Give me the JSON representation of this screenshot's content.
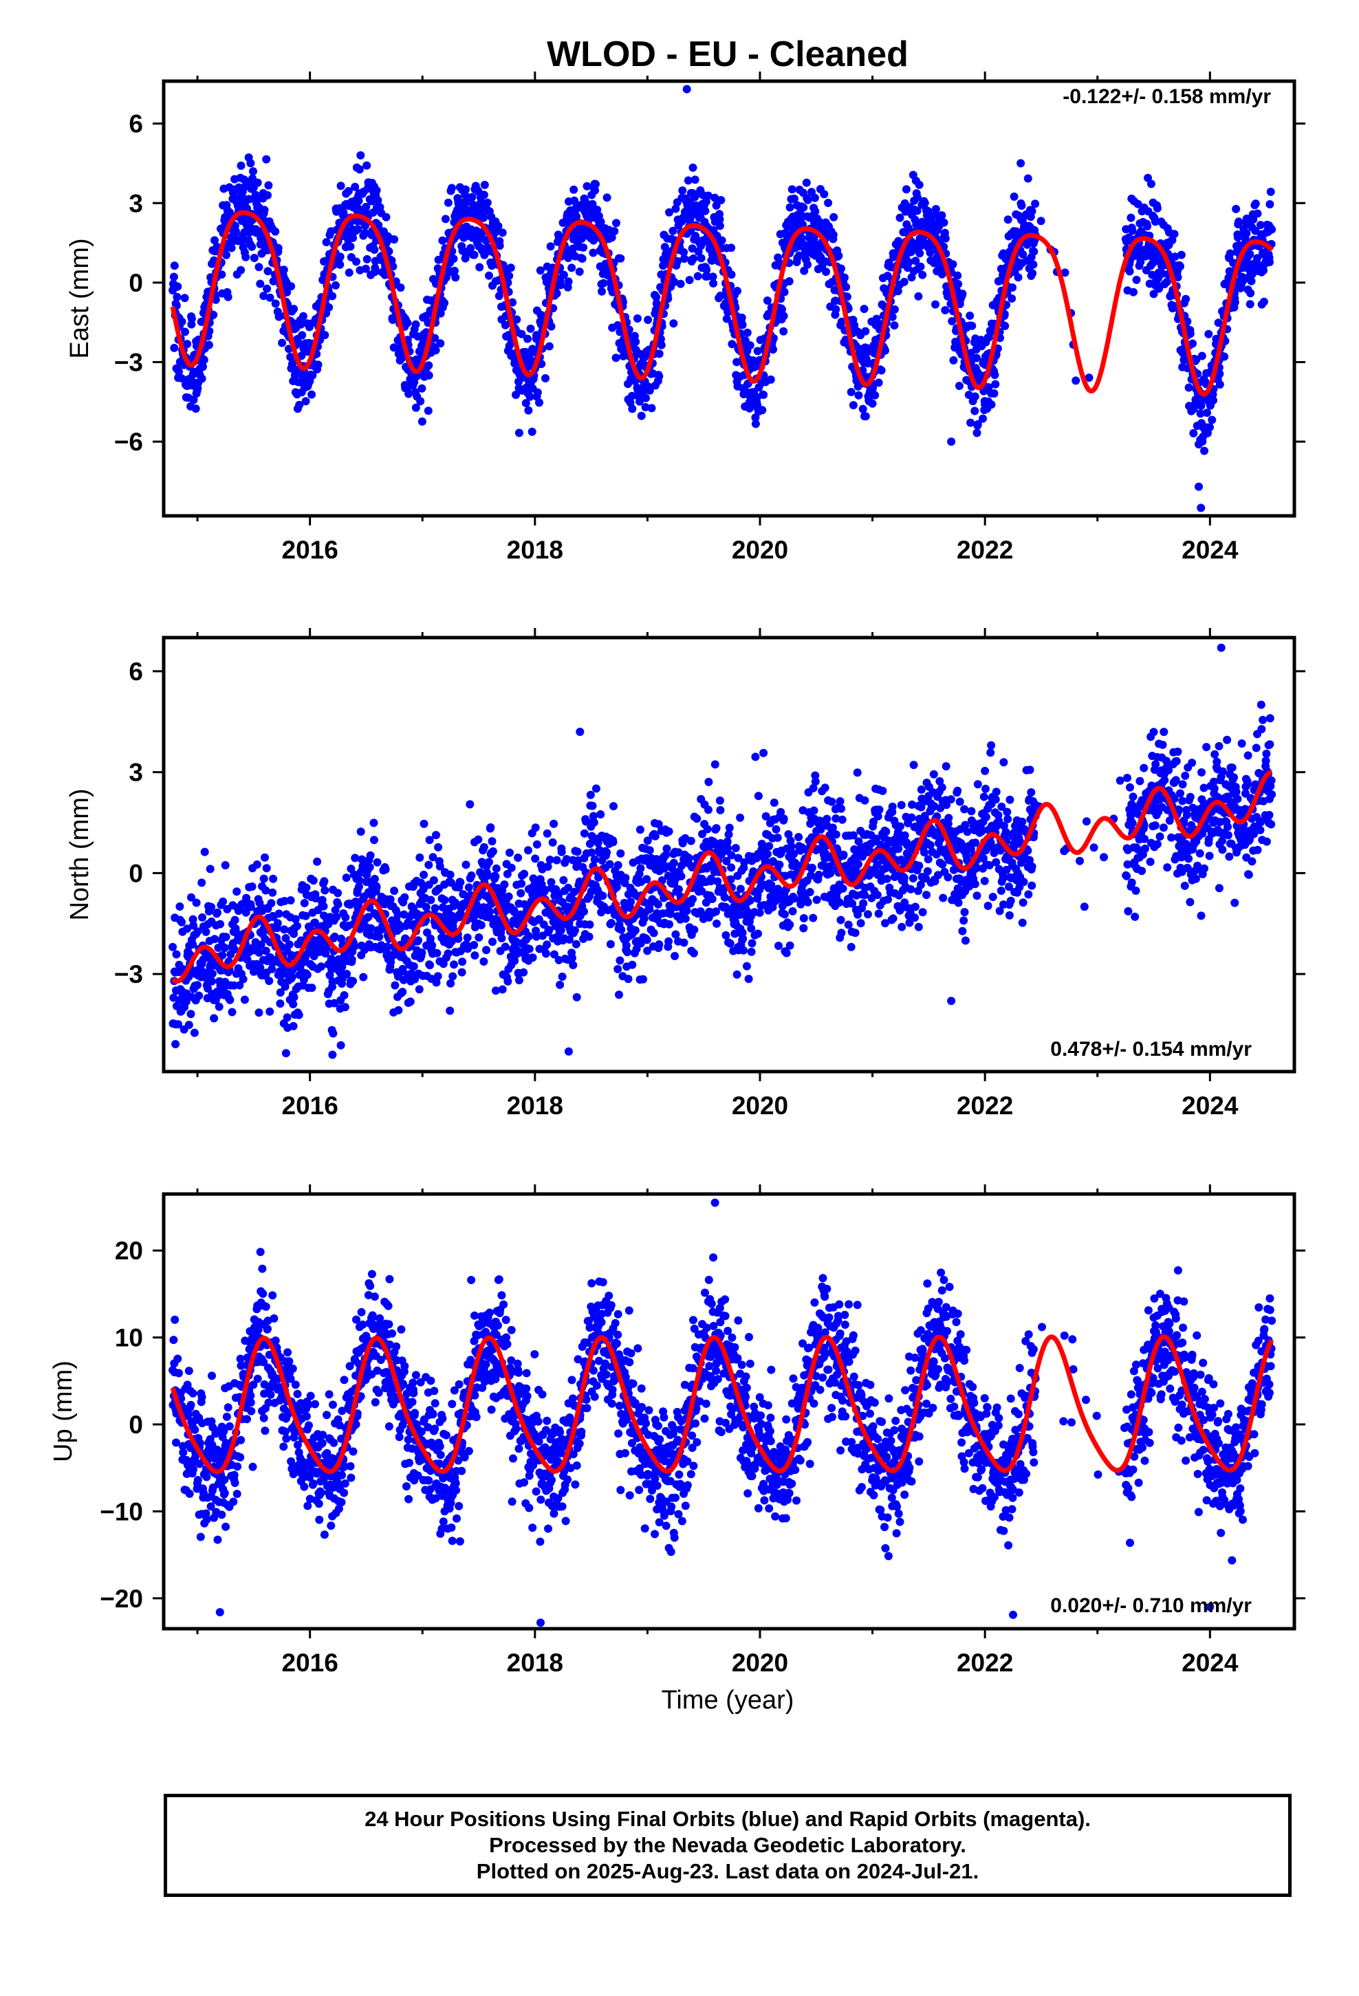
{
  "title": "WLOD  - EU - Cleaned",
  "xlabel": "Time (year)",
  "footer": {
    "line1": "24 Hour Positions Using Final Orbits (blue) and Rapid Orbits (magenta).",
    "line2": "Processed by the Nevada Geodetic Laboratory.",
    "line3": "Plotted on 2025-Aug-23. Last data on 2024-Jul-21."
  },
  "colors": {
    "data": "#0000ff",
    "model": "#ff0000",
    "axis": "#000000"
  },
  "chart_data": [
    {
      "type": "scatter",
      "panel": "east",
      "ylabel": "East (mm)",
      "rate_text": "-0.122+/- 0.158 mm/yr",
      "xlim": [
        2014.7,
        2024.75
      ],
      "ylim": [
        -8.8,
        7.6
      ],
      "xticks": [
        2016,
        2018,
        2020,
        2022,
        2024
      ],
      "yticks": [
        -6,
        -3,
        0,
        3,
        6
      ],
      "ytick_labels": [
        "−6",
        "−3",
        "0",
        "3",
        "6"
      ],
      "model": {
        "offset": -0.25,
        "trend": -0.122,
        "annual_amp": 2.9,
        "peak": 0.44,
        "semi_amp": 0.55,
        "semi_peak": 0.2
      },
      "scatter_sd": 0.9,
      "extremes": [
        {
          "x": 2019.35,
          "y": 7.3
        },
        {
          "x": 2023.9,
          "y": -7.7
        },
        {
          "x": 2023.92,
          "y": -8.5
        },
        {
          "x": 2023.9,
          "y": -6.1
        },
        {
          "x": 2021.7,
          "y": -6.0
        }
      ],
      "gaps": [
        [
          2022.45,
          2023.25
        ]
      ]
    },
    {
      "type": "scatter",
      "panel": "north",
      "ylabel": "North (mm)",
      "rate_text": "0.478+/- 0.154 mm/yr",
      "xlim": [
        2014.7,
        2024.75
      ],
      "ylim": [
        -5.9,
        7.0
      ],
      "xticks": [
        2016,
        2018,
        2020,
        2022,
        2024
      ],
      "yticks": [
        -3,
        0,
        3,
        6
      ],
      "ytick_labels": [
        "−3",
        "0",
        "3",
        "6"
      ],
      "model": {
        "offset": -0.2,
        "trend": 0.478,
        "annual_amp": 0.35,
        "peak": 0.5,
        "semi_amp": 0.55,
        "semi_peak": 0.05
      },
      "scatter_sd": 0.95,
      "extremes": [
        {
          "x": 2018.4,
          "y": 4.2
        },
        {
          "x": 2018.3,
          "y": -5.3
        },
        {
          "x": 2016.2,
          "y": -5.4
        },
        {
          "x": 2024.1,
          "y": 6.7
        },
        {
          "x": 2021.7,
          "y": -3.8
        }
      ],
      "gaps": [
        [
          2022.45,
          2023.25
        ]
      ]
    },
    {
      "type": "scatter",
      "panel": "up",
      "ylabel": "Up (mm)",
      "rate_text": "0.020+/- 0.710 mm/yr",
      "xlim": [
        2014.7,
        2024.75
      ],
      "ylim": [
        -23.5,
        26.5
      ],
      "xticks": [
        2016,
        2018,
        2020,
        2022,
        2024
      ],
      "yticks": [
        -20,
        -10,
        0,
        10,
        20
      ],
      "ytick_labels": [
        "−20",
        "−10",
        "0",
        "10",
        "20"
      ],
      "model": {
        "offset": 1.6,
        "trend": 0.02,
        "annual_amp": 7.4,
        "peak": 0.62,
        "semi_amp": 1.3,
        "semi_peak": 0.55
      },
      "scatter_sd": 3.6,
      "extremes": [
        {
          "x": 2019.6,
          "y": 25.5
        },
        {
          "x": 2018.05,
          "y": -22.8
        },
        {
          "x": 2015.2,
          "y": -21.6
        },
        {
          "x": 2022.25,
          "y": -21.9
        },
        {
          "x": 2024.0,
          "y": -21.0
        }
      ],
      "gaps": [
        [
          2022.45,
          2023.25
        ]
      ]
    }
  ]
}
